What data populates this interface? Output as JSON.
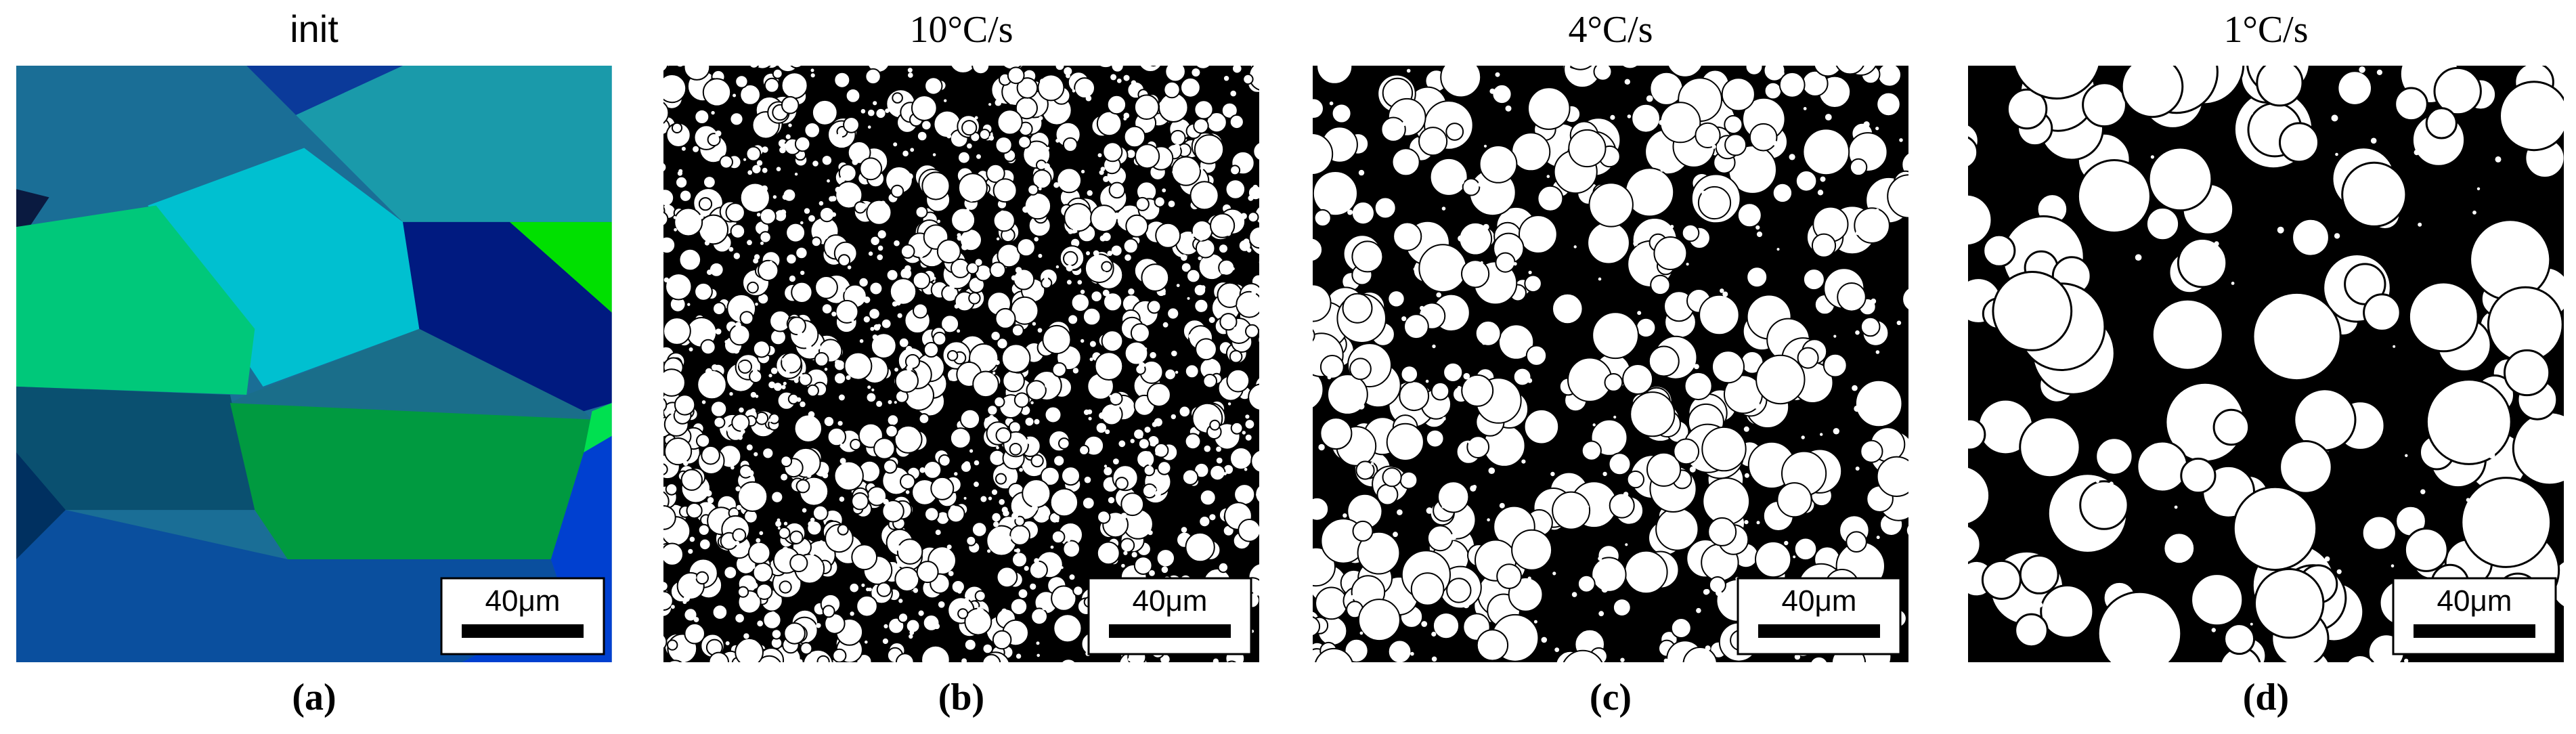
{
  "panels": [
    {
      "title": "init",
      "label": "(a)",
      "scale_bar": "40μm"
    },
    {
      "title": "10°C/s",
      "label": "(b)",
      "scale_bar": "40μm"
    },
    {
      "title": "4°C/s",
      "label": "(c)",
      "scale_bar": "40μm"
    },
    {
      "title": "1°C/s",
      "label": "(d)",
      "scale_bar": "40μm"
    }
  ]
}
